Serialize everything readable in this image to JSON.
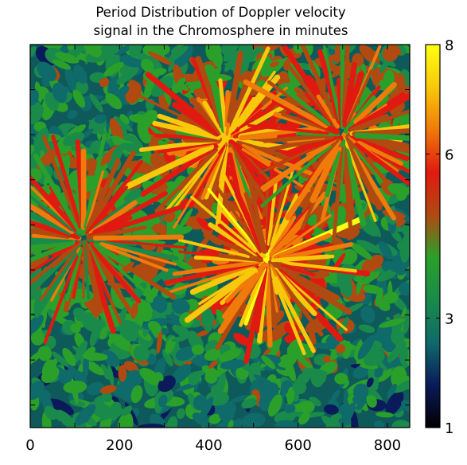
{
  "chart_data": {
    "type": "heatmap",
    "title_line1": "Period Distribution of Doppler velocity",
    "title_line2": "signal in the Chromosphere in minutes",
    "xlabel": "",
    "ylabel": "",
    "xlim": [
      0,
      850
    ],
    "x_ticks": [
      "0",
      "200",
      "400",
      "600",
      "800"
    ],
    "x_tick_values": [
      0,
      200,
      400,
      600,
      800
    ],
    "y_ticks_visible": false,
    "colorbar": {
      "range": [
        1,
        8
      ],
      "ticks": [
        "1",
        "3",
        "6",
        "8"
      ],
      "tick_values": [
        1,
        3,
        6,
        8
      ],
      "colormap": [
        "#000000",
        "#0a1a5a",
        "#0f6a6a",
        "#1a8a4a",
        "#2aa02a",
        "#b04a10",
        "#e01a10",
        "#f07a0a",
        "#f8c80a",
        "#ffff10"
      ]
    },
    "features": [
      {
        "name": "upper rosette (high-period cluster)",
        "center": [
          440,
          210
        ],
        "value": 7.5
      },
      {
        "name": "lower rosette (high-period cluster)",
        "center": [
          530,
          480
        ],
        "value": 7.8
      },
      {
        "name": "upper-right cluster",
        "center": [
          700,
          200
        ],
        "value": 7.0
      },
      {
        "name": "left-lower cluster",
        "center": [
          120,
          430
        ],
        "value": 6.5
      }
    ]
  }
}
